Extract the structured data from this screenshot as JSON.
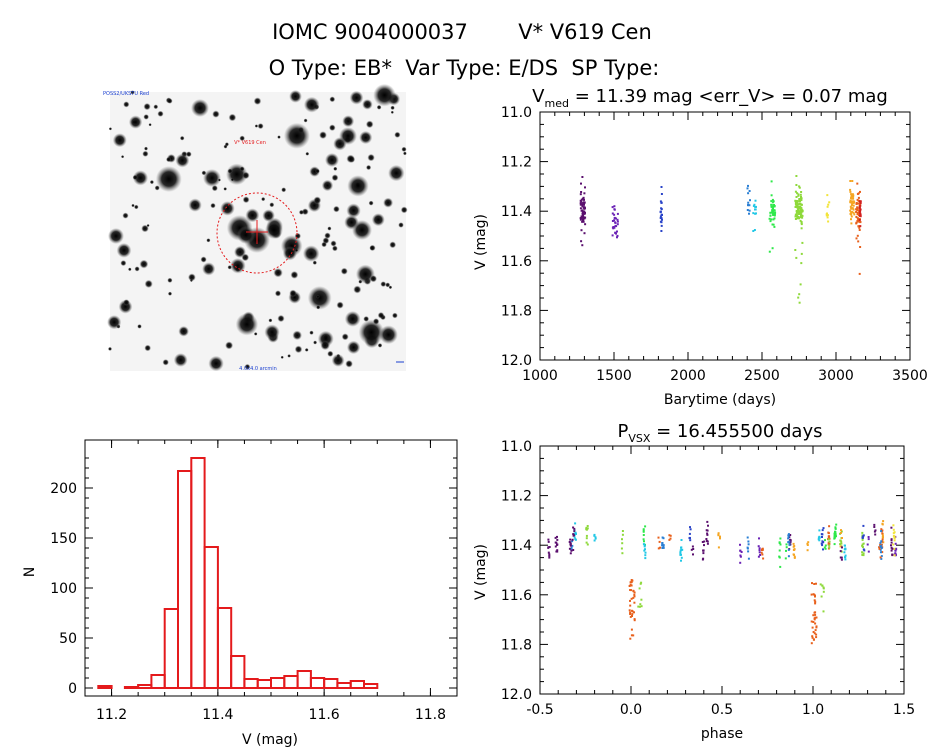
{
  "header": {
    "line1_left": "IOMC 9004000037",
    "line1_right": "V* V619 Cen",
    "line2": "O Type: EB*  Var Type: E/DS  SP Type:"
  },
  "image_panel": {
    "top_left_label": "POSS2/UKSTU Red",
    "top_center_label": "V* V619 Cen",
    "bottom_center_label": "4.0x4.0 arcmin"
  },
  "colors": {
    "histogram": "#e41a1c",
    "sequence": [
      "#5a0f6e",
      "#6a22b5",
      "#2a44c8",
      "#2a7fd4",
      "#22c8e6",
      "#2ee84a",
      "#8ed93b",
      "#f2e43a",
      "#f5a623",
      "#e8601c",
      "#d21f1f"
    ]
  },
  "chart_data": [
    {
      "type": "scatter",
      "title_prefix": "V",
      "title_sub": "med",
      "title_rest": " = 11.39 mag <err_V> = 0.07 mag",
      "xlabel": "Barytime (days)",
      "ylabel": "V (mag)",
      "xlim": [
        1000,
        3500
      ],
      "ylim": [
        12.0,
        11.0
      ],
      "xticks": [
        "1000",
        "1500",
        "2000",
        "2500",
        "3000",
        "3500"
      ],
      "yticks": [
        "11.0",
        "11.2",
        "11.4",
        "11.6",
        "11.8",
        "12.0"
      ],
      "clusters": [
        {
          "x": 1290,
          "width": 30,
          "ymin": 11.23,
          "ymax": 11.55,
          "center": 11.39,
          "n": 70
        },
        {
          "x": 1510,
          "width": 40,
          "ymin": 11.38,
          "ymax": 11.53,
          "center": 11.45,
          "n": 30
        },
        {
          "x": 1820,
          "width": 10,
          "ymin": 11.3,
          "ymax": 11.48,
          "center": 11.4,
          "n": 20
        },
        {
          "x": 2410,
          "width": 20,
          "ymin": 11.26,
          "ymax": 11.42,
          "center": 11.34,
          "n": 12
        },
        {
          "x": 2450,
          "width": 20,
          "ymin": 11.32,
          "ymax": 11.48,
          "center": 11.4,
          "n": 12
        },
        {
          "x": 2570,
          "width": 40,
          "ymin": 11.28,
          "ymax": 11.63,
          "center": 11.4,
          "n": 45
        },
        {
          "x": 2750,
          "width": 50,
          "ymin": 11.25,
          "ymax": 11.78,
          "center": 11.38,
          "n": 110
        },
        {
          "x": 2945,
          "width": 20,
          "ymin": 11.33,
          "ymax": 11.47,
          "center": 11.4,
          "n": 10
        },
        {
          "x": 3110,
          "width": 30,
          "ymin": 11.26,
          "ymax": 11.45,
          "center": 11.37,
          "n": 45
        },
        {
          "x": 3150,
          "width": 30,
          "ymin": 11.27,
          "ymax": 11.8,
          "center": 11.4,
          "n": 60
        },
        {
          "x": 3165,
          "width": 10,
          "ymin": 11.36,
          "ymax": 11.46,
          "center": 11.41,
          "n": 15
        }
      ]
    },
    {
      "type": "bar",
      "xlabel": "V (mag)",
      "ylabel": "N",
      "xlim": [
        11.15,
        11.85
      ],
      "ylim": [
        0,
        240
      ],
      "xticks": [
        "11.2",
        "11.4",
        "11.6",
        "11.8"
      ],
      "yticks": [
        "0",
        "50",
        "100",
        "150",
        "200"
      ],
      "bin_width": 0.025,
      "bin_starts": [
        11.15,
        11.175,
        11.2,
        11.225,
        11.25,
        11.275,
        11.3,
        11.325,
        11.35,
        11.375,
        11.4,
        11.425,
        11.45,
        11.475,
        11.5,
        11.525,
        11.55,
        11.575,
        11.6,
        11.625,
        11.65,
        11.675,
        11.7,
        11.725,
        11.75,
        11.775,
        11.8
      ],
      "values": [
        0,
        2,
        0,
        1,
        3,
        13,
        79,
        217,
        230,
        141,
        80,
        32,
        9,
        8,
        10,
        12,
        17,
        10,
        9,
        5,
        7,
        4,
        0,
        0,
        0,
        0,
        0
      ]
    },
    {
      "type": "scatter",
      "title_prefix": "P",
      "title_sub": "VSX",
      "title_rest": " = 16.455500 days",
      "xlabel": "phase",
      "ylabel": "V (mag)",
      "xlim": [
        -0.5,
        1.5
      ],
      "ylim": [
        12.0,
        11.0
      ],
      "xticks": [
        "-0.5",
        "0.0",
        "0.5",
        "1.0",
        "1.5"
      ],
      "yticks": [
        "11.0",
        "11.2",
        "11.4",
        "11.6",
        "11.8",
        "12.0"
      ],
      "period_days": 16.4555,
      "eclipse_depth": 11.8,
      "baseline": 11.39
    }
  ]
}
